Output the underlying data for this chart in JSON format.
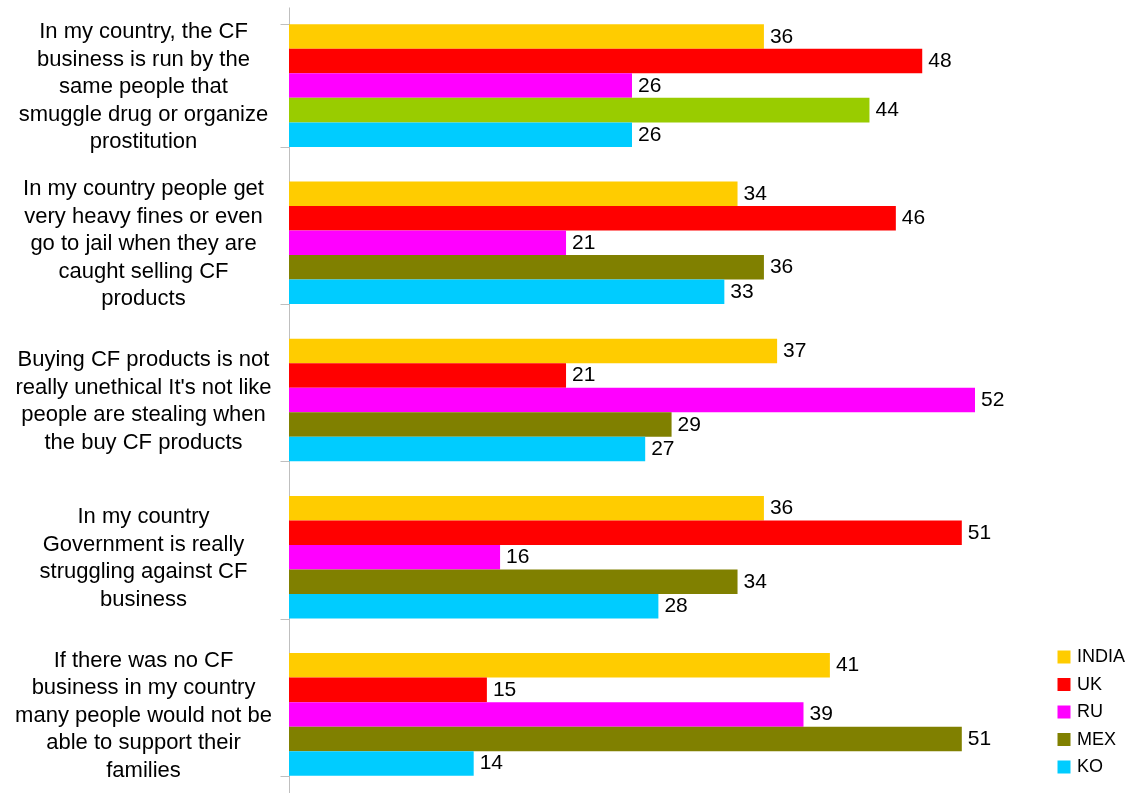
{
  "chart_data": {
    "type": "bar",
    "orientation": "horizontal",
    "data_labels": true,
    "legend": "bottom right",
    "categories": [
      "In my country, the CF business is run by the same people that smuggle drug or organize prostitution",
      "In my country people get very heavy fines or even go to jail when they are caught selling CF products",
      "Buying CF products is not really unethical It's not like people are stealing when the buy CF products",
      "In my country Government is really struggling against CF business",
      "If there was no CF business in my country many people would not be able to support their families"
    ],
    "series": [
      {
        "name": "INDIA",
        "color": "#ffcc00",
        "values": [
          36,
          34,
          37,
          36,
          41
        ]
      },
      {
        "name": "UK",
        "color": "#ff0000",
        "values": [
          48,
          46,
          21,
          51,
          15
        ]
      },
      {
        "name": "RU",
        "color": "#ff00ff",
        "values": [
          26,
          21,
          52,
          16,
          39
        ]
      },
      {
        "name": "MEX",
        "color": "#808000",
        "colors": [
          "#99cc00",
          "#808000",
          "#808000",
          "#808000",
          "#808000"
        ],
        "values": [
          44,
          36,
          29,
          34,
          51
        ]
      },
      {
        "name": "KO",
        "color": "#00ccff",
        "values": [
          26,
          33,
          27,
          28,
          14
        ]
      }
    ]
  }
}
